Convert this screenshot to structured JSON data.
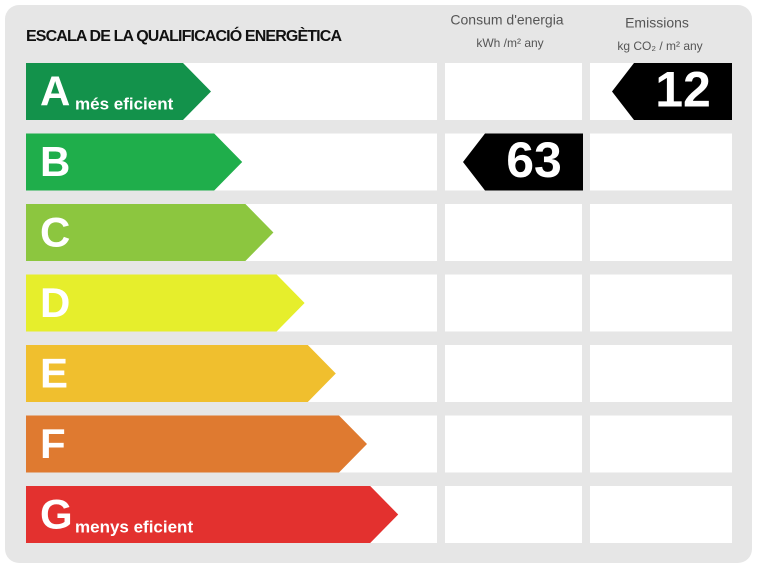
{
  "header": {
    "title": "ESCALA DE LA QUALIFICACIÓ ENERGÈTICA",
    "columns": [
      {
        "title": "Consum d'energia",
        "unit": "kWh /m² any"
      },
      {
        "title": "Emissions",
        "unit": "kg CO₂ / m² any"
      }
    ]
  },
  "rows": [
    {
      "letter": "A",
      "note": "més eficient",
      "color": "#13924b",
      "emissions": 12
    },
    {
      "letter": "B",
      "color": "#1fae4b",
      "consumption": 63
    },
    {
      "letter": "C",
      "color": "#8cc63f"
    },
    {
      "letter": "D",
      "color": "#e6ee2c"
    },
    {
      "letter": "E",
      "color": "#f0bf2e"
    },
    {
      "letter": "F",
      "color": "#df7a30"
    },
    {
      "letter": "G",
      "note": "menys eficient",
      "color": "#e3312f"
    }
  ]
}
